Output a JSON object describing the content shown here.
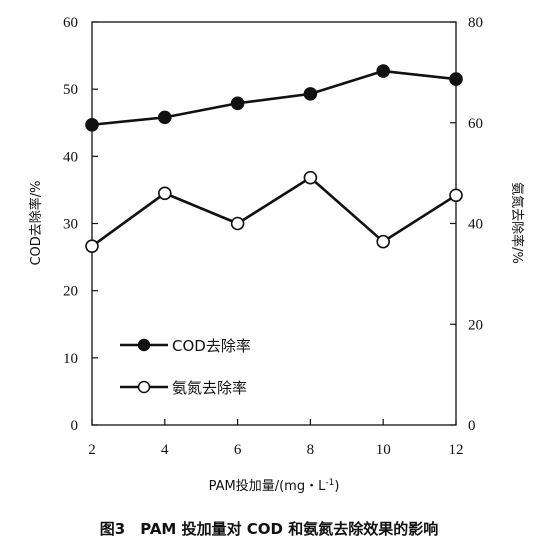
{
  "chart_data": {
    "type": "line",
    "x": [
      2,
      4,
      6,
      8,
      10,
      12
    ],
    "xlabel": "PAM投加量/(mg・L",
    "xlabel_sup": "-1",
    "xlabel_end": ")",
    "ylabel_left": "COD去除率/%",
    "ylabel_right": "氨氮去除率/%",
    "xlim": [
      2,
      12
    ],
    "ylim_left": [
      0,
      60
    ],
    "ylim_right": [
      0,
      80
    ],
    "xticks": [
      "2",
      "4",
      "6",
      "8",
      "10",
      "12"
    ],
    "yticks_left": [
      "0",
      "10",
      "20",
      "30",
      "40",
      "50",
      "60"
    ],
    "yticks_right": [
      "0",
      "20",
      "40",
      "60",
      "80"
    ],
    "grid": false,
    "legend_position": "lower-left",
    "series": [
      {
        "name": "COD去除率",
        "axis": "left",
        "marker": "filled-circle",
        "values": [
          44.7,
          45.8,
          47.9,
          49.3,
          52.7,
          51.5
        ]
      },
      {
        "name": "氨氮去除率",
        "axis": "right",
        "marker": "open-circle",
        "values": [
          35.5,
          46.0,
          40.0,
          49.1,
          36.4,
          45.6
        ]
      }
    ]
  },
  "caption": "图3　PAM 投加量对 COD 和氨氮去除效果的影响"
}
